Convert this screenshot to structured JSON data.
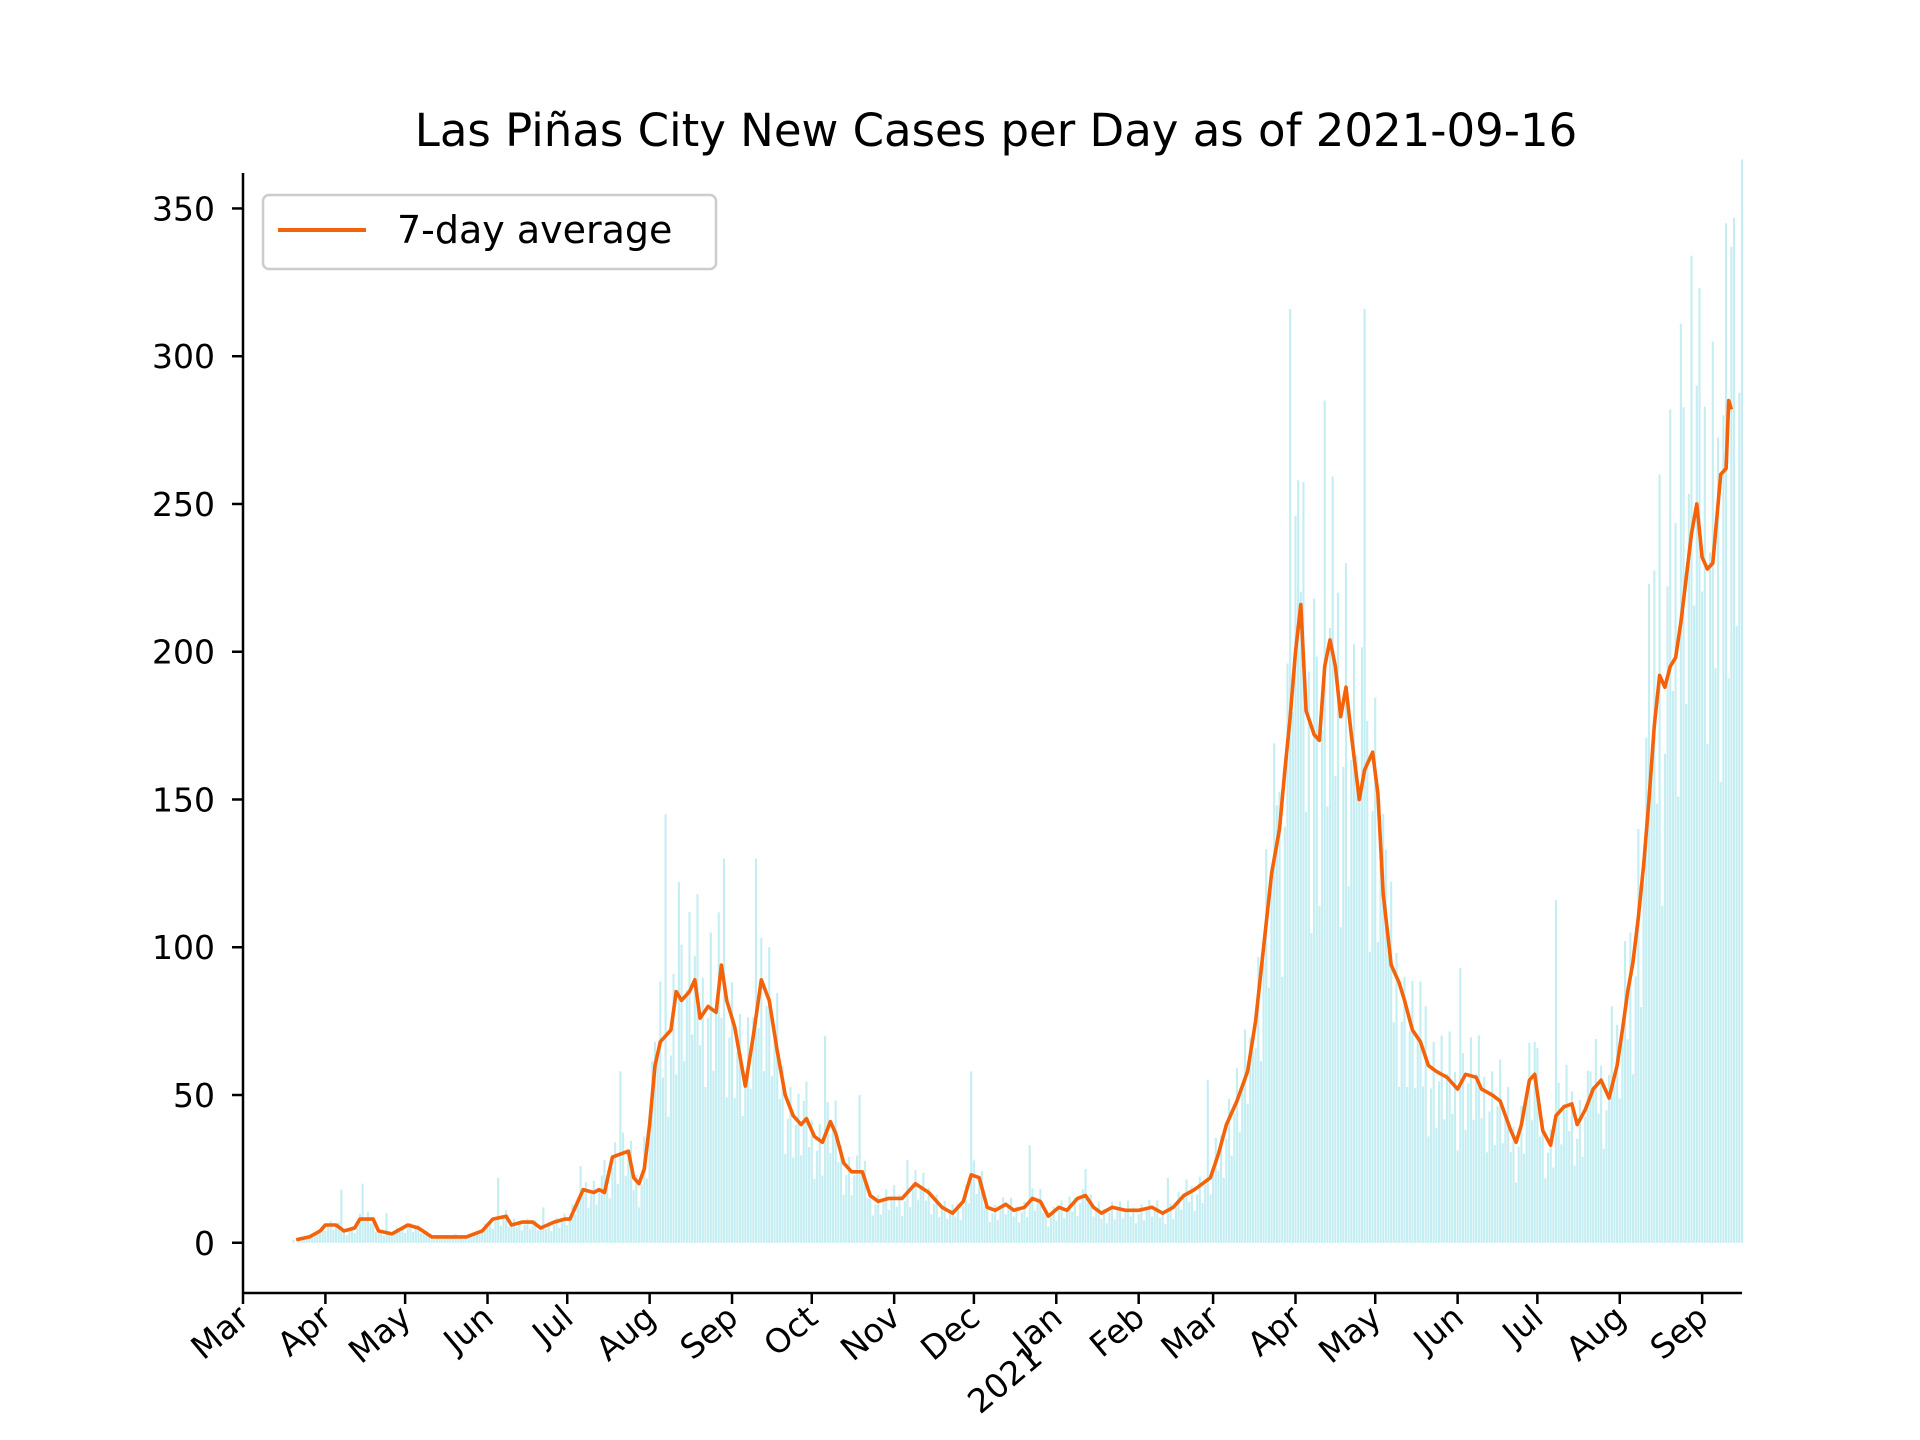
{
  "colors": {
    "line": "#f4620a",
    "bars": "#c5eef3",
    "axis": "#000000",
    "legend_border": "#cccccc"
  },
  "chart_data": {
    "type": "bar+line",
    "title": "Las Piñas City New Cases per Day as of 2021-09-16",
    "xlabel": "",
    "ylabel": "",
    "xlim": [
      "2020-03-01",
      "2021-09-16"
    ],
    "ylim": [
      -17,
      362
    ],
    "yticks": [
      0,
      50,
      100,
      150,
      200,
      250,
      300,
      350
    ],
    "xticks": [
      {
        "date": "2020-03-01",
        "label": "Mar"
      },
      {
        "date": "2020-04-01",
        "label": "Apr"
      },
      {
        "date": "2020-05-01",
        "label": "May"
      },
      {
        "date": "2020-06-01",
        "label": "Jun"
      },
      {
        "date": "2020-07-01",
        "label": "Jul"
      },
      {
        "date": "2020-08-01",
        "label": "Aug"
      },
      {
        "date": "2020-09-01",
        "label": "Sep"
      },
      {
        "date": "2020-10-01",
        "label": "Oct"
      },
      {
        "date": "2020-11-01",
        "label": "Nov"
      },
      {
        "date": "2020-12-01",
        "label": "Dec"
      },
      {
        "date": "2021-01-01",
        "label": "Jan",
        "label2": "2021"
      },
      {
        "date": "2021-02-01",
        "label": "Feb"
      },
      {
        "date": "2021-03-01",
        "label": "Mar"
      },
      {
        "date": "2021-04-01",
        "label": "Apr"
      },
      {
        "date": "2021-05-01",
        "label": "May"
      },
      {
        "date": "2021-06-01",
        "label": "Jun"
      },
      {
        "date": "2021-07-01",
        "label": "Jul"
      },
      {
        "date": "2021-08-01",
        "label": "Aug"
      },
      {
        "date": "2021-09-01",
        "label": "Sep"
      }
    ],
    "legend": {
      "position": "upper left",
      "entries": [
        "7-day average"
      ]
    },
    "grid": false,
    "series": [
      {
        "name": "7-day average",
        "type": "line",
        "points": [
          [
            "2020-03-21",
            1
          ],
          [
            "2020-03-26",
            2
          ],
          [
            "2020-03-30",
            4
          ],
          [
            "2020-04-01",
            6
          ],
          [
            "2020-04-05",
            6
          ],
          [
            "2020-04-08",
            4
          ],
          [
            "2020-04-12",
            5
          ],
          [
            "2020-04-14",
            8
          ],
          [
            "2020-04-19",
            8
          ],
          [
            "2020-04-21",
            4
          ],
          [
            "2020-04-26",
            3
          ],
          [
            "2020-04-30",
            5
          ],
          [
            "2020-05-02",
            6
          ],
          [
            "2020-05-06",
            5
          ],
          [
            "2020-05-11",
            2
          ],
          [
            "2020-05-16",
            2
          ],
          [
            "2020-05-24",
            2
          ],
          [
            "2020-05-30",
            4
          ],
          [
            "2020-06-03",
            8
          ],
          [
            "2020-06-08",
            9
          ],
          [
            "2020-06-10",
            6
          ],
          [
            "2020-06-14",
            7
          ],
          [
            "2020-06-18",
            7
          ],
          [
            "2020-06-21",
            5
          ],
          [
            "2020-06-26",
            7
          ],
          [
            "2020-06-30",
            8
          ],
          [
            "2020-07-02",
            8
          ],
          [
            "2020-07-05",
            14
          ],
          [
            "2020-07-07",
            18
          ],
          [
            "2020-07-11",
            17
          ],
          [
            "2020-07-13",
            18
          ],
          [
            "2020-07-15",
            17
          ],
          [
            "2020-07-18",
            29
          ],
          [
            "2020-07-21",
            30
          ],
          [
            "2020-07-24",
            31
          ],
          [
            "2020-07-26",
            22
          ],
          [
            "2020-07-28",
            20
          ],
          [
            "2020-07-30",
            25
          ],
          [
            "2020-08-01",
            40
          ],
          [
            "2020-08-03",
            60
          ],
          [
            "2020-08-05",
            68
          ],
          [
            "2020-08-07",
            70
          ],
          [
            "2020-08-09",
            72
          ],
          [
            "2020-08-11",
            85
          ],
          [
            "2020-08-13",
            82
          ],
          [
            "2020-08-16",
            85
          ],
          [
            "2020-08-18",
            89
          ],
          [
            "2020-08-20",
            76
          ],
          [
            "2020-08-23",
            80
          ],
          [
            "2020-08-26",
            78
          ],
          [
            "2020-08-28",
            94
          ],
          [
            "2020-08-30",
            82
          ],
          [
            "2020-09-02",
            73
          ],
          [
            "2020-09-06",
            53
          ],
          [
            "2020-09-09",
            70
          ],
          [
            "2020-09-12",
            89
          ],
          [
            "2020-09-15",
            82
          ],
          [
            "2020-09-18",
            65
          ],
          [
            "2020-09-21",
            50
          ],
          [
            "2020-09-24",
            43
          ],
          [
            "2020-09-27",
            40
          ],
          [
            "2020-09-29",
            42
          ],
          [
            "2020-10-02",
            36
          ],
          [
            "2020-10-05",
            34
          ],
          [
            "2020-10-08",
            41
          ],
          [
            "2020-10-10",
            37
          ],
          [
            "2020-10-13",
            27
          ],
          [
            "2020-10-16",
            24
          ],
          [
            "2020-10-20",
            24
          ],
          [
            "2020-10-23",
            16
          ],
          [
            "2020-10-26",
            14
          ],
          [
            "2020-10-30",
            15
          ],
          [
            "2020-11-04",
            15
          ],
          [
            "2020-11-09",
            20
          ],
          [
            "2020-11-14",
            17
          ],
          [
            "2020-11-19",
            12
          ],
          [
            "2020-11-23",
            10
          ],
          [
            "2020-11-27",
            14
          ],
          [
            "2020-11-30",
            23
          ],
          [
            "2020-12-03",
            22
          ],
          [
            "2020-12-06",
            12
          ],
          [
            "2020-12-09",
            11
          ],
          [
            "2020-12-13",
            13
          ],
          [
            "2020-12-16",
            11
          ],
          [
            "2020-12-20",
            12
          ],
          [
            "2020-12-23",
            15
          ],
          [
            "2020-12-26",
            14
          ],
          [
            "2020-12-29",
            9
          ],
          [
            "2021-01-02",
            12
          ],
          [
            "2021-01-05",
            11
          ],
          [
            "2021-01-09",
            15
          ],
          [
            "2021-01-12",
            16
          ],
          [
            "2021-01-15",
            12
          ],
          [
            "2021-01-18",
            10
          ],
          [
            "2021-01-22",
            12
          ],
          [
            "2021-01-27",
            11
          ],
          [
            "2021-02-01",
            11
          ],
          [
            "2021-02-06",
            12
          ],
          [
            "2021-02-10",
            10
          ],
          [
            "2021-02-14",
            12
          ],
          [
            "2021-02-18",
            16
          ],
          [
            "2021-02-22",
            18
          ],
          [
            "2021-02-25",
            20
          ],
          [
            "2021-02-28",
            22
          ],
          [
            "2021-03-03",
            30
          ],
          [
            "2021-03-06",
            40
          ],
          [
            "2021-03-10",
            48
          ],
          [
            "2021-03-14",
            58
          ],
          [
            "2021-03-17",
            75
          ],
          [
            "2021-03-20",
            100
          ],
          [
            "2021-03-23",
            125
          ],
          [
            "2021-03-26",
            140
          ],
          [
            "2021-03-28",
            160
          ],
          [
            "2021-03-30",
            178
          ],
          [
            "2021-04-01",
            200
          ],
          [
            "2021-04-03",
            216
          ],
          [
            "2021-04-05",
            180
          ],
          [
            "2021-04-08",
            172
          ],
          [
            "2021-04-10",
            170
          ],
          [
            "2021-04-12",
            195
          ],
          [
            "2021-04-14",
            204
          ],
          [
            "2021-04-16",
            195
          ],
          [
            "2021-04-18",
            178
          ],
          [
            "2021-04-20",
            188
          ],
          [
            "2021-04-22",
            172
          ],
          [
            "2021-04-25",
            150
          ],
          [
            "2021-04-27",
            160
          ],
          [
            "2021-04-30",
            166
          ],
          [
            "2021-05-02",
            152
          ],
          [
            "2021-05-04",
            118
          ],
          [
            "2021-05-07",
            94
          ],
          [
            "2021-05-10",
            88
          ],
          [
            "2021-05-12",
            82
          ],
          [
            "2021-05-15",
            72
          ],
          [
            "2021-05-18",
            68
          ],
          [
            "2021-05-21",
            60
          ],
          [
            "2021-05-24",
            58
          ],
          [
            "2021-05-28",
            56
          ],
          [
            "2021-06-01",
            52
          ],
          [
            "2021-06-04",
            57
          ],
          [
            "2021-06-08",
            56
          ],
          [
            "2021-06-10",
            52
          ],
          [
            "2021-06-14",
            50
          ],
          [
            "2021-06-17",
            48
          ],
          [
            "2021-06-21",
            38
          ],
          [
            "2021-06-23",
            34
          ],
          [
            "2021-06-25",
            40
          ],
          [
            "2021-06-28",
            55
          ],
          [
            "2021-06-30",
            57
          ],
          [
            "2021-07-03",
            38
          ],
          [
            "2021-07-06",
            33
          ],
          [
            "2021-07-08",
            43
          ],
          [
            "2021-07-11",
            46
          ],
          [
            "2021-07-14",
            47
          ],
          [
            "2021-07-16",
            40
          ],
          [
            "2021-07-19",
            45
          ],
          [
            "2021-07-22",
            52
          ],
          [
            "2021-07-25",
            55
          ],
          [
            "2021-07-28",
            49
          ],
          [
            "2021-07-31",
            60
          ],
          [
            "2021-08-02",
            72
          ],
          [
            "2021-08-04",
            85
          ],
          [
            "2021-08-06",
            95
          ],
          [
            "2021-08-08",
            110
          ],
          [
            "2021-08-10",
            128
          ],
          [
            "2021-08-12",
            150
          ],
          [
            "2021-08-14",
            175
          ],
          [
            "2021-08-16",
            192
          ],
          [
            "2021-08-18",
            188
          ],
          [
            "2021-08-20",
            195
          ],
          [
            "2021-08-22",
            198
          ],
          [
            "2021-08-24",
            210
          ],
          [
            "2021-08-26",
            225
          ],
          [
            "2021-08-28",
            240
          ],
          [
            "2021-08-30",
            250
          ],
          [
            "2021-09-01",
            232
          ],
          [
            "2021-09-03",
            228
          ],
          [
            "2021-09-05",
            230
          ],
          [
            "2021-09-08",
            260
          ],
          [
            "2021-09-10",
            262
          ],
          [
            "2021-09-11",
            285
          ],
          [
            "2021-09-12",
            282
          ]
        ]
      },
      {
        "name": "",
        "type": "bar",
        "points": [
          [
            "2020-03-20",
            1
          ],
          [
            "2020-03-29",
            3
          ],
          [
            "2020-04-07",
            18
          ],
          [
            "2020-04-15",
            20
          ],
          [
            "2020-04-24",
            10
          ],
          [
            "2020-05-20",
            3
          ],
          [
            "2020-06-05",
            22
          ],
          [
            "2020-06-22",
            12
          ],
          [
            "2020-07-06",
            26
          ],
          [
            "2020-07-15",
            28
          ],
          [
            "2020-07-21",
            58
          ],
          [
            "2020-07-30",
            36
          ],
          [
            "2020-08-03",
            68
          ],
          [
            "2020-08-07",
            145
          ],
          [
            "2020-08-12",
            122
          ],
          [
            "2020-08-16",
            112
          ],
          [
            "2020-08-19",
            118
          ],
          [
            "2020-08-24",
            105
          ],
          [
            "2020-08-29",
            130
          ],
          [
            "2020-09-10",
            130
          ],
          [
            "2020-09-15",
            100
          ],
          [
            "2020-09-28",
            48
          ],
          [
            "2020-10-06",
            70
          ],
          [
            "2020-10-19",
            50
          ],
          [
            "2020-11-06",
            28
          ],
          [
            "2020-11-30",
            58
          ],
          [
            "2020-12-22",
            33
          ],
          [
            "2021-01-12",
            25
          ],
          [
            "2021-02-12",
            22
          ],
          [
            "2021-02-27",
            55
          ],
          [
            "2021-03-16",
            65
          ],
          [
            "2021-03-25",
            148
          ],
          [
            "2021-03-30",
            316
          ],
          [
            "2021-04-02",
            258
          ],
          [
            "2021-04-08",
            218
          ],
          [
            "2021-04-12",
            285
          ],
          [
            "2021-04-17",
            220
          ],
          [
            "2021-04-20",
            230
          ],
          [
            "2021-04-24",
            165
          ],
          [
            "2021-04-27",
            316
          ],
          [
            "2021-05-05",
            133
          ],
          [
            "2021-05-12",
            90
          ],
          [
            "2021-05-20",
            80
          ],
          [
            "2021-06-02",
            93
          ],
          [
            "2021-06-17",
            62
          ],
          [
            "2021-06-30",
            68
          ],
          [
            "2021-07-08",
            116
          ],
          [
            "2021-07-21",
            58
          ],
          [
            "2021-07-29",
            80
          ],
          [
            "2021-08-05",
            105
          ],
          [
            "2021-08-08",
            140
          ],
          [
            "2021-08-12",
            223
          ],
          [
            "2021-08-16",
            260
          ],
          [
            "2021-08-20",
            282
          ],
          [
            "2021-08-24",
            311
          ],
          [
            "2021-08-28",
            334
          ],
          [
            "2021-08-31",
            323
          ],
          [
            "2021-09-05",
            305
          ],
          [
            "2021-09-09",
            280
          ],
          [
            "2021-09-10",
            345
          ],
          [
            "2021-09-12",
            337
          ]
        ]
      }
    ]
  }
}
